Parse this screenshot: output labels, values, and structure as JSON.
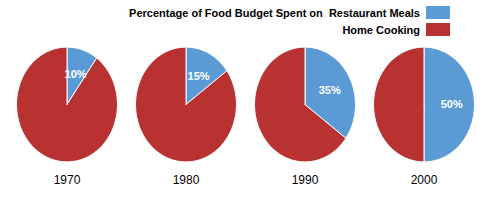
{
  "chart_data": {
    "type": "pie",
    "categories": [
      "1970",
      "1980",
      "1990",
      "2000"
    ],
    "series": [
      {
        "name": "Percentage of Food Budget Spent on  Restaurant Meals",
        "color": "#5B9BD5",
        "values": [
          10,
          15,
          35,
          50
        ],
        "value_labels": [
          "10%",
          "15%",
          "35%",
          "50%"
        ]
      },
      {
        "name": "Home Cooking",
        "color": "#B83232",
        "values": [
          90,
          85,
          65,
          50
        ]
      }
    ],
    "legend": "upper right"
  }
}
